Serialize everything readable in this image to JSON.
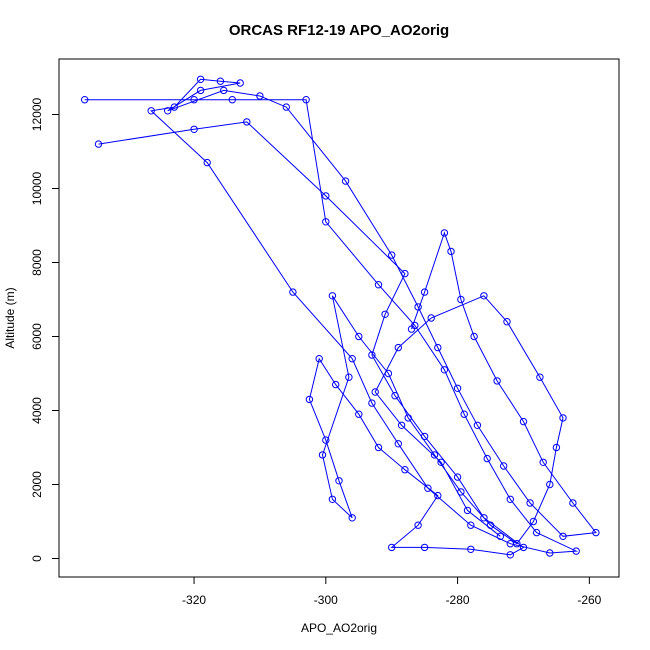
{
  "chart_data": {
    "type": "scatter",
    "title": "ORCAS RF12-19 APO_AO2orig",
    "xlabel": "APO_AO2orig",
    "ylabel": "Altitude (m)",
    "xlim": [
      -340.5,
      -255.5
    ],
    "ylim": [
      -500,
      13500
    ],
    "x_ticks": [
      -320,
      -300,
      -280,
      -260
    ],
    "y_ticks": [
      0,
      2000,
      4000,
      6000,
      8000,
      10000,
      12000
    ],
    "grid": false,
    "legend": "none",
    "point_style": "open-circle-joined",
    "color": "#0000ff",
    "series": [
      {
        "values": [
          [
            -336.6,
            12400
          ],
          [
            -320.0,
            12400
          ],
          [
            -314.2,
            12400
          ],
          [
            -303.0,
            12400
          ],
          [
            -300.0,
            9100
          ],
          [
            -292.0,
            7400
          ],
          [
            -286.5,
            6300
          ],
          [
            -282.0,
            5100
          ],
          [
            -279.0,
            3900
          ],
          [
            -275.5,
            2700
          ],
          [
            -272.0,
            1600
          ],
          [
            -268.0,
            700
          ],
          [
            -262.0,
            200
          ],
          [
            -266.0,
            150
          ],
          [
            -272.0,
            400
          ],
          [
            -278.0,
            900
          ],
          [
            -284.5,
            1900
          ],
          [
            -289.0,
            3100
          ],
          [
            -293.0,
            4200
          ],
          [
            -296.0,
            5400
          ],
          [
            -305.0,
            7200
          ],
          [
            -318.0,
            10700
          ],
          [
            -326.5,
            12100
          ],
          [
            -323.0,
            12200
          ],
          [
            -319.0,
            12950
          ],
          [
            -316.0,
            12900
          ],
          [
            -313.0,
            12850
          ],
          [
            -319.0,
            12650
          ],
          [
            -324.0,
            12100
          ],
          [
            -315.5,
            12650
          ],
          [
            -310.0,
            12500
          ],
          [
            -306.0,
            12200
          ],
          [
            -297.0,
            10200
          ],
          [
            -290.0,
            8200
          ],
          [
            -286.0,
            6800
          ],
          [
            -283.0,
            5700
          ],
          [
            -280.0,
            4600
          ],
          [
            -277.0,
            3600
          ],
          [
            -273.0,
            2500
          ],
          [
            -269.0,
            1500
          ],
          [
            -264.0,
            600
          ],
          [
            -259.0,
            700
          ],
          [
            -262.5,
            1500
          ],
          [
            -267.0,
            2600
          ],
          [
            -270.0,
            3700
          ],
          [
            -274.0,
            4800
          ],
          [
            -277.5,
            6000
          ],
          [
            -279.5,
            7000
          ],
          [
            -281.0,
            8300
          ],
          [
            -282.0,
            8800
          ],
          [
            -285.0,
            7200
          ],
          [
            -287.0,
            6200
          ]
        ]
      },
      {
        "values": [
          [
            -334.5,
            11200
          ],
          [
            -320.0,
            11600
          ],
          [
            -312.0,
            11800
          ],
          [
            -300.0,
            9800
          ],
          [
            -288.0,
            7700
          ],
          [
            -291.0,
            6600
          ],
          [
            -293.0,
            5500
          ],
          [
            -289.5,
            4400
          ],
          [
            -285.0,
            3300
          ],
          [
            -280.0,
            2200
          ],
          [
            -276.0,
            1100
          ],
          [
            -270.0,
            300
          ],
          [
            -272.0,
            100
          ],
          [
            -278.0,
            250
          ],
          [
            -285.0,
            300
          ],
          [
            -290.0,
            300
          ],
          [
            -286.0,
            900
          ],
          [
            -283.0,
            1700
          ],
          [
            -288.0,
            2400
          ],
          [
            -292.0,
            3000
          ],
          [
            -295.0,
            3900
          ],
          [
            -298.5,
            4700
          ],
          [
            -301.0,
            5400
          ],
          [
            -302.5,
            4300
          ],
          [
            -300.0,
            3200
          ],
          [
            -298.0,
            2100
          ],
          [
            -296.0,
            1100
          ],
          [
            -299.0,
            1600
          ],
          [
            -300.5,
            2800
          ],
          [
            -296.5,
            4900
          ],
          [
            -299.0,
            7100
          ],
          [
            -295.0,
            6000
          ],
          [
            -290.5,
            5000
          ],
          [
            -287.5,
            3800
          ],
          [
            -283.5,
            2800
          ],
          [
            -279.5,
            1800
          ],
          [
            -275.0,
            900
          ],
          [
            -271.0,
            400
          ],
          [
            -268.5,
            1000
          ],
          [
            -266.0,
            2000
          ],
          [
            -265.0,
            3000
          ],
          [
            -264.0,
            3800
          ],
          [
            -267.5,
            4900
          ],
          [
            -272.5,
            6400
          ],
          [
            -276.0,
            7100
          ],
          [
            -284.0,
            6500
          ],
          [
            -289.0,
            5700
          ],
          [
            -292.5,
            4500
          ],
          [
            -288.5,
            3600
          ],
          [
            -282.5,
            2600
          ],
          [
            -278.5,
            1300
          ],
          [
            -273.5,
            600
          ]
        ]
      }
    ]
  }
}
